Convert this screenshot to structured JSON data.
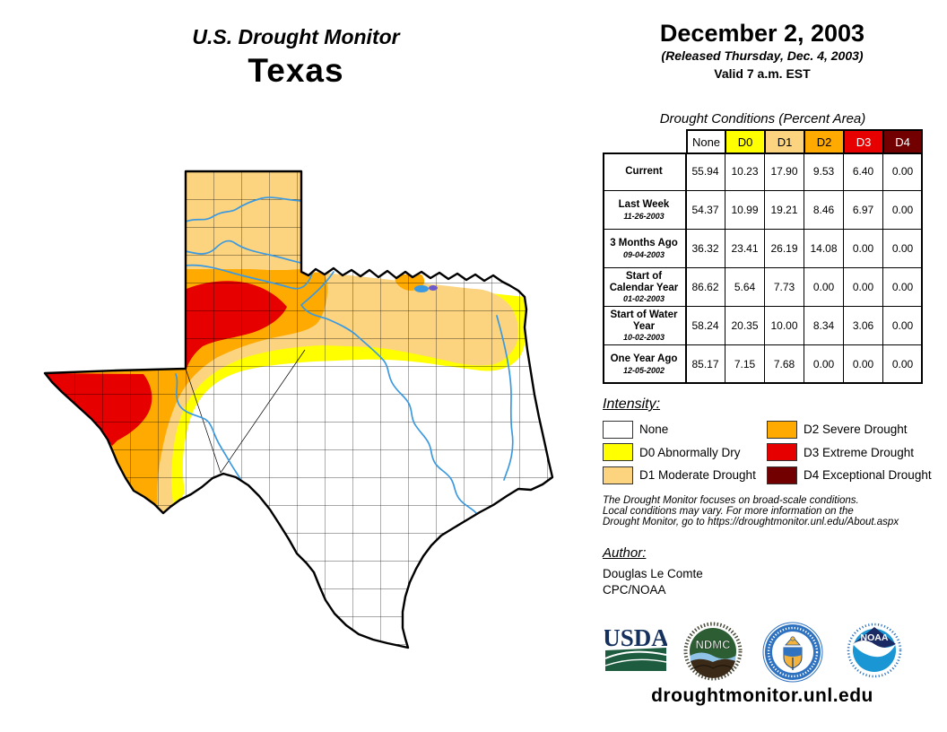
{
  "header": {
    "title": "U.S. Drought Monitor",
    "region": "Texas",
    "date": "December 2, 2003",
    "released": "(Released Thursday, Dec. 4, 2003)",
    "valid": "Valid 7 a.m. EST"
  },
  "table": {
    "title": "Drought Conditions (Percent Area)",
    "columns": [
      {
        "label": "None",
        "bg": "#FFFFFF",
        "fg": "#000000"
      },
      {
        "label": "D0",
        "bg": "#FFFF00",
        "fg": "#000000"
      },
      {
        "label": "D1",
        "bg": "#FCD37F",
        "fg": "#000000"
      },
      {
        "label": "D2",
        "bg": "#FFAA00",
        "fg": "#000000"
      },
      {
        "label": "D3",
        "bg": "#E60000",
        "fg": "#FFFFFF"
      },
      {
        "label": "D4",
        "bg": "#730000",
        "fg": "#FFFFFF"
      }
    ],
    "rows": [
      {
        "label": "Current",
        "date": "",
        "values": [
          "55.94",
          "10.23",
          "17.90",
          "9.53",
          "6.40",
          "0.00"
        ]
      },
      {
        "label": "Last Week",
        "date": "11-26-2003",
        "values": [
          "54.37",
          "10.99",
          "19.21",
          "8.46",
          "6.97",
          "0.00"
        ]
      },
      {
        "label": "3 Months Ago",
        "date": "09-04-2003",
        "values": [
          "36.32",
          "23.41",
          "26.19",
          "14.08",
          "0.00",
          "0.00"
        ]
      },
      {
        "label": "Start of Calendar Year",
        "date": "01-02-2003",
        "values": [
          "86.62",
          "5.64",
          "7.73",
          "0.00",
          "0.00",
          "0.00"
        ]
      },
      {
        "label": "Start of Water Year",
        "date": "10-02-2003",
        "values": [
          "58.24",
          "20.35",
          "10.00",
          "8.34",
          "3.06",
          "0.00"
        ]
      },
      {
        "label": "One Year Ago",
        "date": "12-05-2002",
        "values": [
          "85.17",
          "7.15",
          "7.68",
          "0.00",
          "0.00",
          "0.00"
        ]
      }
    ]
  },
  "legend": {
    "title": "Intensity:",
    "items": [
      {
        "label": "None",
        "color": "#FFFFFF"
      },
      {
        "label": "D0 Abnormally Dry",
        "color": "#FFFF00"
      },
      {
        "label": "D1 Moderate Drought",
        "color": "#FCD37F"
      },
      {
        "label": "D2 Severe Drought",
        "color": "#FFAA00"
      },
      {
        "label": "D3 Extreme Drought",
        "color": "#E60000"
      },
      {
        "label": "D4 Exceptional Drought",
        "color": "#730000"
      }
    ]
  },
  "disclaimer": {
    "line1": "The Drought Monitor focuses on broad-scale conditions.",
    "line2": "Local conditions may vary. For more information on the",
    "line3": "Drought Monitor, go to https://droughtmonitor.unl.edu/About.aspx"
  },
  "author": {
    "title": "Author:",
    "name": "Douglas Le Comte",
    "org": "CPC/NOAA"
  },
  "footer": {
    "url": "droughtmonitor.unl.edu"
  },
  "logos": {
    "usda_text": "USDA",
    "ndmc_text": "NDMC",
    "noaa_text": "NOAA",
    "colors": {
      "usda_navy": "#16305E",
      "usda_green": "#1D5C3F",
      "ndmc_green": "#2D5E33",
      "ndmc_brown": "#3C2A18",
      "ndmc_blue": "#8FC3E8",
      "doc_blue": "#2F72C0",
      "doc_gold": "#F3B33C",
      "noaa_navy": "#1B2A63",
      "noaa_cyan": "#1996D3",
      "white": "#FFFFFF"
    }
  },
  "map": {
    "colors": {
      "none": "#FFFFFF",
      "d0": "#FFFF00",
      "d1": "#FCD37F",
      "d2": "#FFAA00",
      "d3": "#E60000",
      "d4": "#730000",
      "river": "#3B99E0",
      "lake_accent": "#6A5ACD",
      "border": "#000000"
    }
  },
  "chart_data": {
    "type": "table",
    "title": "Drought Conditions (Percent Area)",
    "categories": [
      "None",
      "D0",
      "D1",
      "D2",
      "D3",
      "D4"
    ],
    "rows": [
      {
        "name": "Current",
        "values": [
          55.94,
          10.23,
          17.9,
          9.53,
          6.4,
          0.0
        ]
      },
      {
        "name": "Last Week (11-26-2003)",
        "values": [
          54.37,
          10.99,
          19.21,
          8.46,
          6.97,
          0.0
        ]
      },
      {
        "name": "3 Months Ago (09-04-2003)",
        "values": [
          36.32,
          23.41,
          26.19,
          14.08,
          0.0,
          0.0
        ]
      },
      {
        "name": "Start of Calendar Year (01-02-2003)",
        "values": [
          86.62,
          5.64,
          7.73,
          0.0,
          0.0,
          0.0
        ]
      },
      {
        "name": "Start of Water Year (10-02-2003)",
        "values": [
          58.24,
          20.35,
          10.0,
          8.34,
          3.06,
          0.0
        ]
      },
      {
        "name": "One Year Ago (12-05-2002)",
        "values": [
          85.17,
          7.15,
          7.68,
          0.0,
          0.0,
          0.0
        ]
      }
    ]
  }
}
